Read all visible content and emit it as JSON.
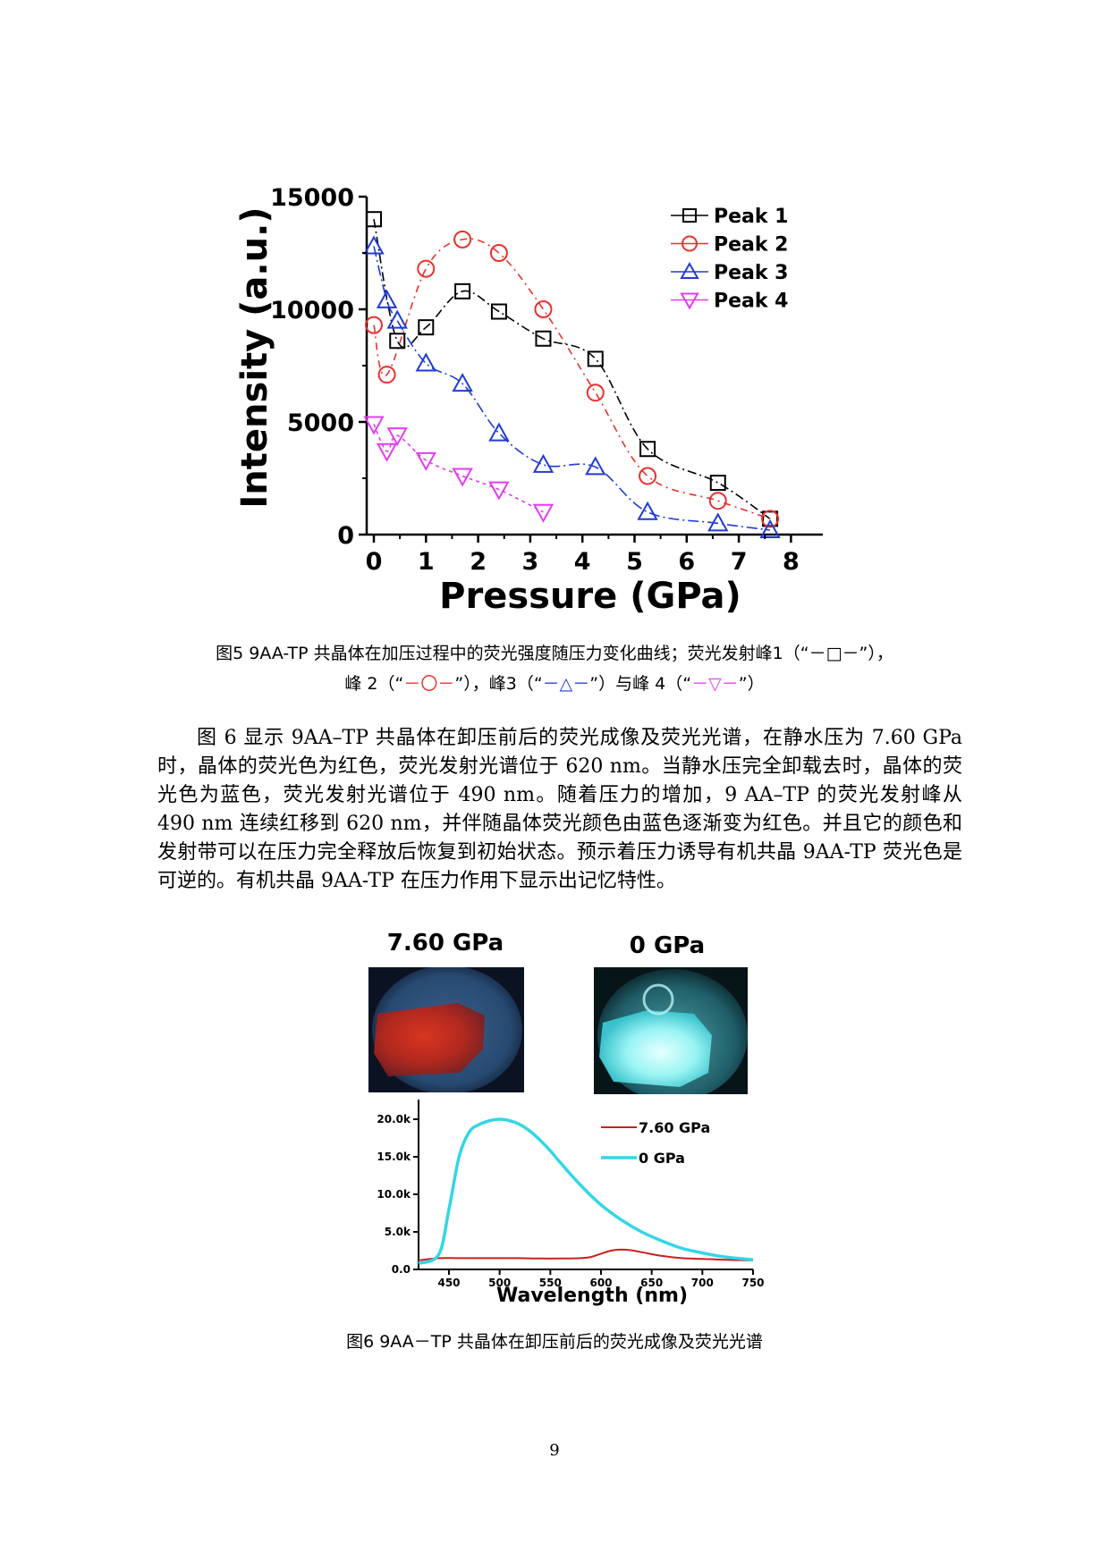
{
  "chart_data": [
    {
      "type": "line",
      "xlabel": "Pressure (GPa)",
      "ylabel": "Intensity (a.u.)",
      "xlim": [
        -0.2,
        8.6
      ],
      "ylim": [
        0,
        15000
      ],
      "xticks": [
        "0",
        "1",
        "2",
        "3",
        "4",
        "5",
        "6",
        "7",
        "8"
      ],
      "yticks": [
        "0",
        "5000",
        "10000",
        "15000"
      ],
      "legend_position": "top-right",
      "series": [
        {
          "name": "Peak 1",
          "color": "#000000",
          "marker": "square",
          "x": [
            0,
            0.45,
            1.0,
            1.7,
            2.4,
            3.25,
            4.25,
            5.25,
            6.6,
            7.6
          ],
          "y": [
            14000,
            8600,
            9200,
            10800,
            9900,
            8700,
            7800,
            3800,
            2300,
            700
          ]
        },
        {
          "name": "Peak 2",
          "color": "#e8312d",
          "marker": "circle",
          "x": [
            0,
            0.25,
            1.0,
            1.7,
            2.4,
            3.25,
            4.25,
            5.25,
            6.6,
            7.6
          ],
          "y": [
            9300,
            7100,
            11800,
            13100,
            12500,
            10000,
            6300,
            2600,
            1500,
            700
          ]
        },
        {
          "name": "Peak 3",
          "color": "#1f3bd6",
          "marker": "triangle-up",
          "x": [
            0,
            0.25,
            0.45,
            1.0,
            1.7,
            2.4,
            3.25,
            4.25,
            5.25,
            6.6,
            7.6
          ],
          "y": [
            12800,
            10400,
            9500,
            7600,
            6700,
            4500,
            3100,
            3000,
            1000,
            500,
            200
          ]
        },
        {
          "name": "Peak 4",
          "color": "#e43cf0",
          "marker": "triangle-down",
          "x": [
            0,
            0.25,
            0.45,
            1.0,
            1.7,
            2.4,
            3.25
          ],
          "y": [
            4900,
            3700,
            4400,
            3300,
            2600,
            2000,
            1000
          ]
        }
      ]
    },
    {
      "type": "line",
      "xlabel": "Wavelength (nm)",
      "ylabel": "",
      "xlim": [
        420,
        750
      ],
      "ylim": [
        0,
        20000
      ],
      "xticks": [
        "450",
        "500",
        "550",
        "600",
        "650",
        "700",
        "750"
      ],
      "yticks": [
        "0.0",
        "5.0k",
        "10.0k",
        "15.0k",
        "20.0k"
      ],
      "legend_position": "top-right",
      "series": [
        {
          "name": "7.60 GPa",
          "color": "#cc1f1f",
          "x": [
            420,
            440,
            460,
            480,
            500,
            520,
            540,
            560,
            580,
            590,
            600,
            610,
            620,
            630,
            640,
            660,
            680,
            700,
            720,
            750
          ],
          "y": [
            1200,
            1500,
            1500,
            1500,
            1500,
            1500,
            1450,
            1450,
            1500,
            1650,
            2100,
            2500,
            2650,
            2550,
            2300,
            1800,
            1500,
            1400,
            1300,
            1200
          ]
        },
        {
          "name": "0 GPa",
          "color": "#33d6e6",
          "x": [
            420,
            440,
            450,
            460,
            470,
            480,
            490,
            500,
            510,
            520,
            530,
            540,
            550,
            560,
            580,
            600,
            620,
            640,
            660,
            680,
            700,
            720,
            750
          ],
          "y": [
            800,
            2000,
            8000,
            15000,
            18300,
            19300,
            19800,
            20000,
            19800,
            19300,
            18400,
            17200,
            15800,
            14200,
            11200,
            8600,
            6600,
            5000,
            3800,
            2800,
            2200,
            1700,
            1300
          ]
        }
      ]
    }
  ],
  "fig5": {
    "caption_prefix": "图5 9AA-TP 共晶体在加压过程中的荧光强度随压力变化曲线；荧光发射峰1（“",
    "sym1": "－□－",
    "caption_mid1": "”），",
    "line2_a": "峰 2（“",
    "sym2": "－〇－",
    "line2_b": "”），峰3（“",
    "sym3": "－△－",
    "line2_c": "”）与峰 4（“",
    "sym4": "－▽－",
    "line2_d": "”）"
  },
  "paragraph": "图 6 显示 9AA–TP 共晶体在卸压前后的荧光成像及荧光光谱，在静水压为 7.60 GPa 时，晶体的荧光色为红色，荧光发射光谱位于 620 nm。当静水压完全卸载去时，晶体的荧光色为蓝色，荧光发射光谱位于 490 nm。随着压力的增加，9 AA–TP 的荧光发射峰从 490 nm 连续红移到 620 nm，并伴随晶体荧光颜色由蓝色逐渐变为红色。并且它的颜色和发射带可以在压力完全释放后恢复到初始状态。预示着压力诱导有机共晶 9AA-TP 荧光色是可逆的。有机共晶 9AA-TP 在压力作用下显示出记忆特性。",
  "fig6": {
    "photo1_label": "7.60 GPa",
    "photo2_label": "0 GPa",
    "caption": "图6 9AA－TP 共晶体在卸压前后的荧光成像及荧光光谱"
  },
  "page_number": "9"
}
